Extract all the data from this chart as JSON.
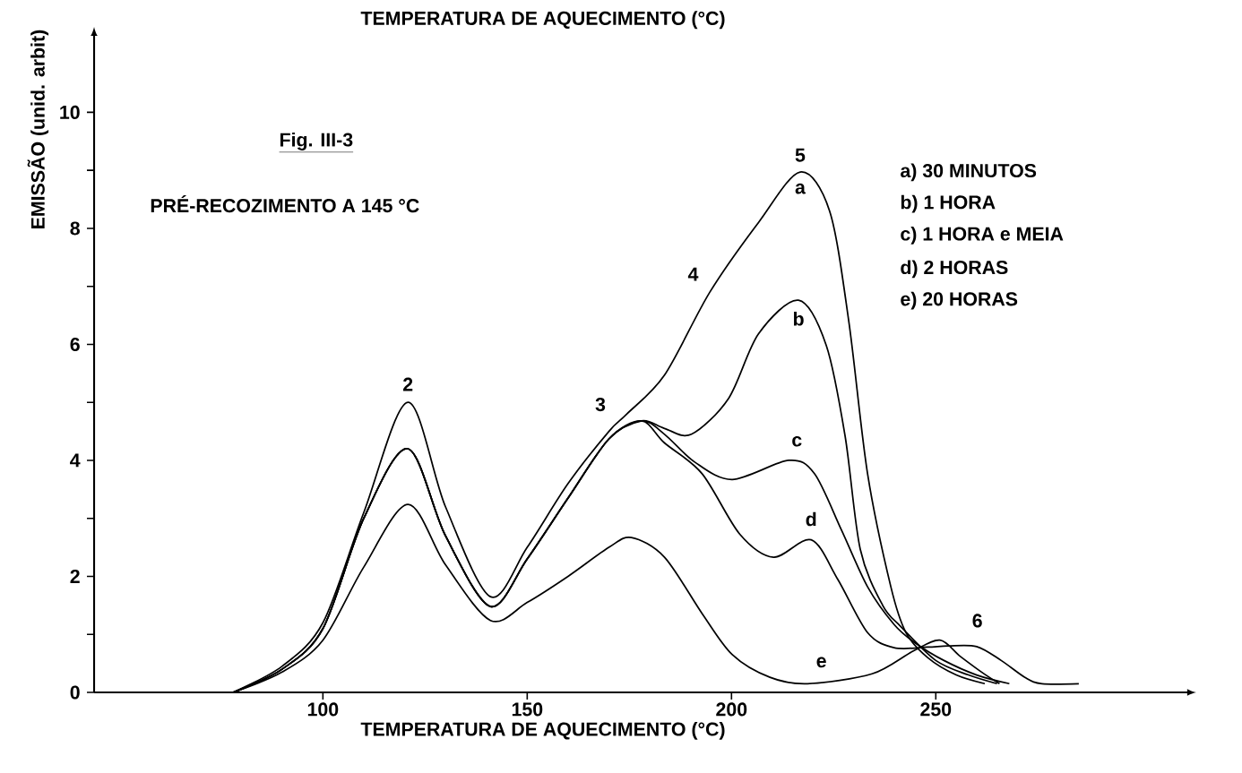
{
  "chart_data": {
    "type": "line",
    "title": "TEMPERATURA DE AQUECIMENTO (°C)",
    "xlabel": "TEMPERATURA DE AQUECIMENTO (°C)",
    "ylabel": "EMISSÃO (unid. arbit)",
    "xlim": [
      44,
      312
    ],
    "ylim": [
      0,
      11.35
    ],
    "xticks": [
      100,
      150,
      200,
      250
    ],
    "yticks": [
      0,
      {
        "value": 1,
        "label": null
      },
      2,
      {
        "value": 3,
        "label": null
      },
      4,
      {
        "value": 5,
        "label": null
      },
      6,
      {
        "value": 7,
        "label": null
      },
      8,
      {
        "value": 9,
        "label": null
      },
      10
    ],
    "series": [
      {
        "name": "a",
        "color": "#000000",
        "x": [
          78,
          90,
          100,
          110,
          120.8,
          130,
          141,
          150,
          160,
          170,
          174.4,
          183.6,
          194.7,
          206.6,
          216.8,
          224,
          228.7,
          233.3,
          239,
          242.7,
          248,
          255,
          262
        ],
        "values": [
          0,
          0.45,
          1.2,
          3.1,
          5.0,
          3.2,
          1.65,
          2.5,
          3.6,
          4.5,
          4.8,
          5.47,
          6.9,
          8.1,
          8.97,
          8.3,
          6.4,
          3.77,
          1.82,
          1.03,
          0.6,
          0.3,
          0.15
        ]
      },
      {
        "name": "b",
        "color": "#000000",
        "x": [
          78,
          90,
          100,
          110,
          120.8,
          130,
          141,
          150,
          160,
          170,
          178,
          183.6,
          190.2,
          199.3,
          206.6,
          216.4,
          223.2,
          227.8,
          231.5,
          237,
          241.5,
          250,
          258,
          265
        ],
        "values": [
          0,
          0.4,
          1.1,
          3.0,
          4.2,
          2.7,
          1.48,
          2.3,
          3.35,
          4.37,
          4.68,
          4.55,
          4.45,
          5.07,
          6.18,
          6.76,
          5.98,
          4.42,
          2.47,
          1.5,
          1.13,
          0.55,
          0.3,
          0.15
        ]
      },
      {
        "name": "c",
        "color": "#000000",
        "x": [
          78,
          90,
          100,
          110,
          120.8,
          130,
          141,
          150,
          160,
          170,
          178,
          183.6,
          191,
          200.2,
          214,
          220.3,
          226.9,
          233.3,
          239.8,
          245,
          252,
          260,
          268
        ],
        "values": [
          0,
          0.4,
          1.1,
          3.0,
          4.2,
          2.7,
          1.48,
          2.3,
          3.35,
          4.37,
          4.68,
          4.45,
          3.97,
          3.67,
          4.0,
          3.77,
          2.8,
          1.82,
          1.17,
          0.85,
          0.55,
          0.3,
          0.15
        ]
      },
      {
        "name": "d",
        "color": "#000000",
        "x": [
          78,
          90,
          100,
          110,
          120.8,
          130,
          141,
          150,
          160,
          170,
          178,
          183.6,
          192.8,
          202,
          210.3,
          219.5,
          226,
          233.3,
          239.8,
          248,
          253,
          260,
          266,
          272,
          276,
          285
        ],
        "values": [
          0,
          0.4,
          1.1,
          3.0,
          4.2,
          2.7,
          1.48,
          2.3,
          3.35,
          4.37,
          4.68,
          4.3,
          3.77,
          2.73,
          2.33,
          2.63,
          1.95,
          1.03,
          0.77,
          0.78,
          0.8,
          0.79,
          0.55,
          0.25,
          0.15,
          0.15
        ]
      },
      {
        "name": "e",
        "color": "#000000",
        "x": [
          78,
          90,
          100,
          110,
          120.8,
          130,
          141,
          150,
          160,
          170,
          175.5,
          183.6,
          192.8,
          200.2,
          209.4,
          218.6,
          234.4,
          244.4,
          251,
          256,
          262,
          265.6
        ],
        "values": [
          0,
          0.35,
          0.9,
          2.16,
          3.24,
          2.2,
          1.24,
          1.55,
          2.0,
          2.5,
          2.67,
          2.33,
          1.36,
          0.65,
          0.26,
          0.15,
          0.32,
          0.71,
          0.9,
          0.62,
          0.31,
          0.15
        ]
      }
    ],
    "annotations": [
      "Fig. III-3",
      "PRÉ-RECOZIMENTO A 145 °C",
      "a) 30 MINUTOS",
      "b) 1 HORA",
      "c) 1 HORA e MEIA",
      "d) 2 HORAS",
      "e) 20 HORAS",
      {
        "text": "2",
        "x": 120.8,
        "y": 5.0
      },
      {
        "text": "3",
        "x": 172,
        "y": 4.65
      },
      {
        "text": "4",
        "x": 194.7,
        "y": 6.9
      },
      {
        "text": "5",
        "x": 216.8,
        "y": 8.97
      },
      {
        "text": "6",
        "x": 259,
        "y": 0.8
      }
    ]
  }
}
